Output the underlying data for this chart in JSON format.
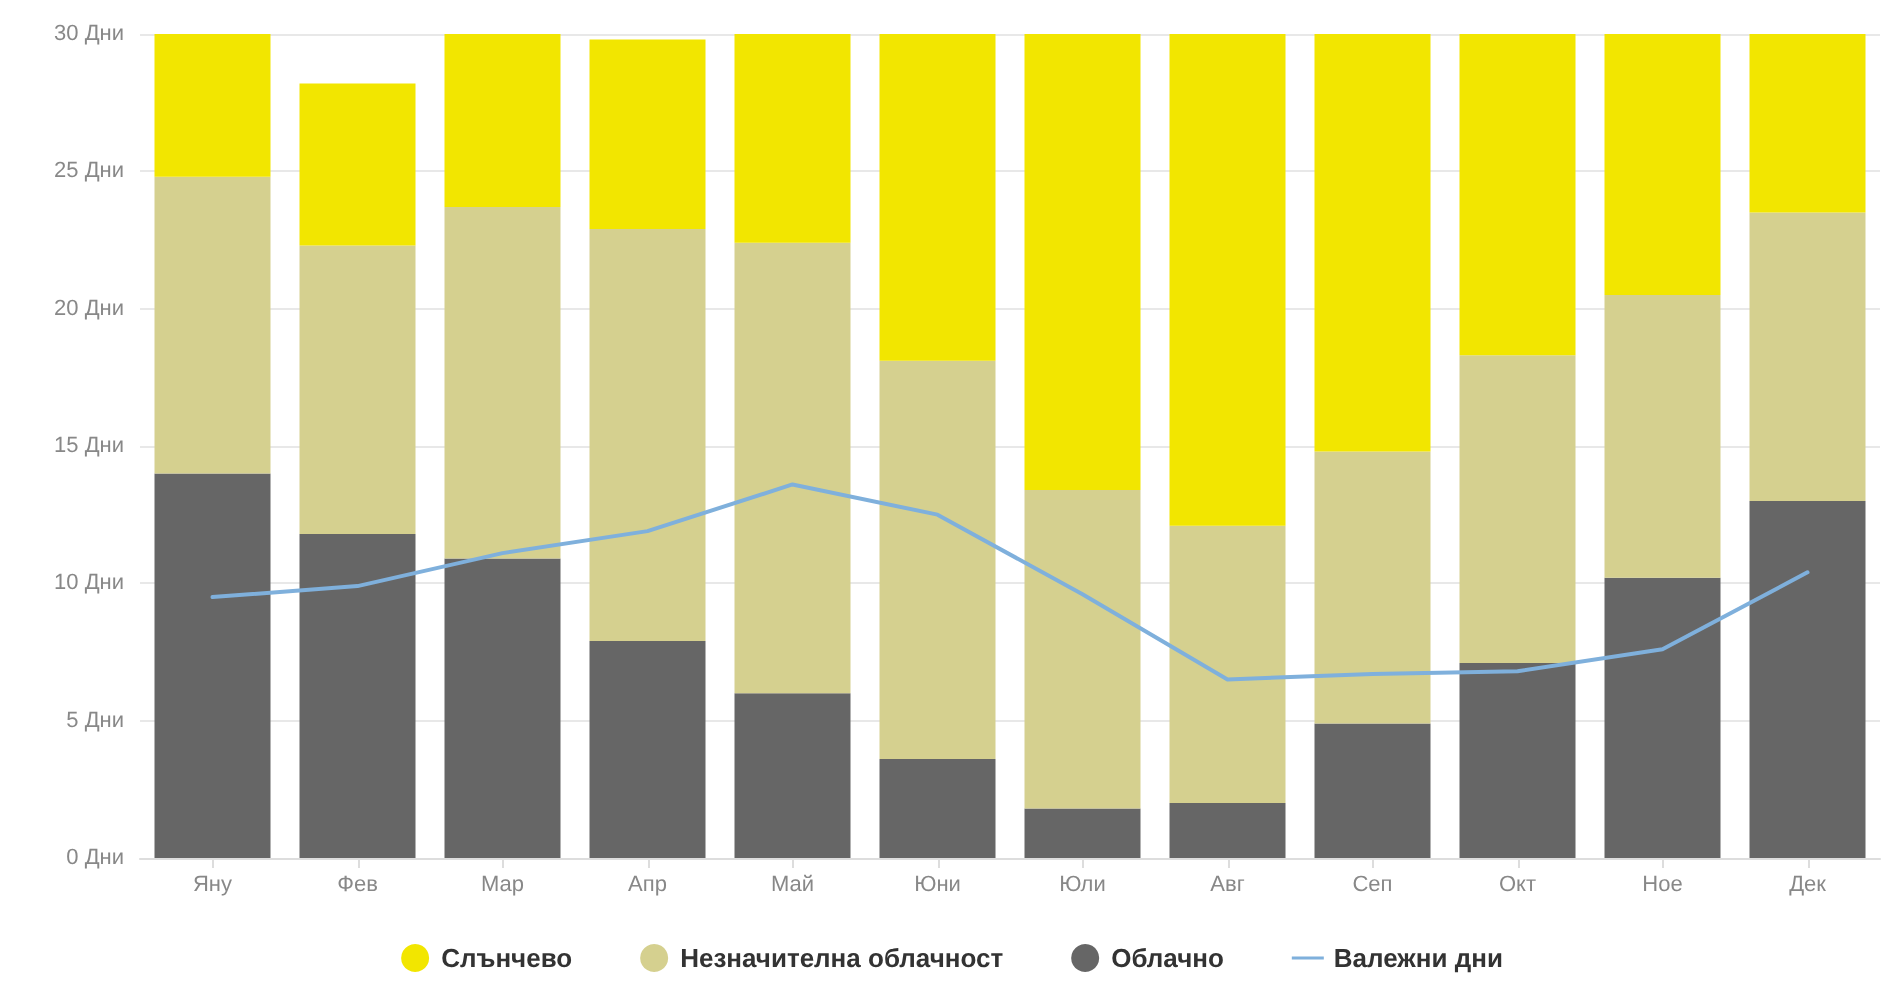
{
  "chart_data": {
    "type": "bar",
    "stacked": true,
    "categories": [
      "Яну",
      "Фев",
      "Мар",
      "Апр",
      "Май",
      "Юни",
      "Юли",
      "Авг",
      "Сеп",
      "Окт",
      "Ное",
      "Дек"
    ],
    "series": [
      {
        "name": "Облачно",
        "color": "#666666",
        "values": [
          14.0,
          11.8,
          10.9,
          7.9,
          6.0,
          3.6,
          1.8,
          2.0,
          4.9,
          7.1,
          10.2,
          13.0
        ]
      },
      {
        "name": "Незначителна облачност",
        "color": "#d5d08f",
        "values": [
          10.8,
          10.5,
          12.8,
          15.0,
          16.4,
          14.5,
          11.6,
          10.1,
          9.9,
          11.2,
          10.3,
          10.5
        ]
      },
      {
        "name": "Слънчево",
        "color": "#f2e600",
        "values": [
          5.2,
          5.9,
          6.3,
          6.9,
          7.6,
          11.9,
          16.6,
          17.9,
          15.2,
          11.7,
          9.5,
          6.5
        ]
      },
      {
        "name": "Валежни дни",
        "type": "line",
        "color": "#7fb0dc",
        "marker": "none",
        "line_style": "solid",
        "values": [
          9.5,
          9.9,
          11.1,
          11.9,
          13.6,
          12.5,
          9.6,
          6.5,
          6.7,
          6.8,
          7.6,
          10.4
        ]
      }
    ],
    "ylim": [
      0,
      30
    ],
    "yticks": [
      {
        "value": 0,
        "label": "0 Дни"
      },
      {
        "value": 5,
        "label": "5 Дни"
      },
      {
        "value": 10,
        "label": "10 Дни"
      },
      {
        "value": 15,
        "label": "15 Дни"
      },
      {
        "value": 20,
        "label": "20 Дни"
      },
      {
        "value": 25,
        "label": "25 Дни"
      },
      {
        "value": 30,
        "label": "30 Дни"
      }
    ],
    "grid": "y",
    "legend": "bottom"
  }
}
